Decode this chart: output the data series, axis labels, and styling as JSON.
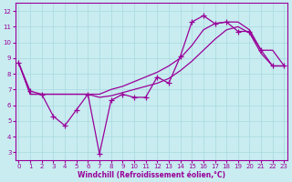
{
  "background_color": "#c8ecf0",
  "grid_color": "#a8d8e0",
  "line_color": "#990099",
  "xlim": [
    -0.3,
    23.3
  ],
  "ylim": [
    2.5,
    12.5
  ],
  "xticks": [
    0,
    1,
    2,
    3,
    4,
    5,
    6,
    7,
    8,
    9,
    10,
    11,
    12,
    13,
    14,
    15,
    16,
    17,
    18,
    19,
    20,
    21,
    22,
    23
  ],
  "yticks": [
    3,
    4,
    5,
    6,
    7,
    8,
    9,
    10,
    11,
    12
  ],
  "xlabel": "Windchill (Refroidissement éolien,°C)",
  "line1_x": [
    0,
    1,
    2,
    3,
    4,
    5,
    6,
    7,
    8,
    9,
    10,
    11,
    12,
    13,
    14,
    15,
    16,
    17,
    18,
    19,
    20,
    21,
    22,
    23
  ],
  "line1_y": [
    8.7,
    6.9,
    6.7,
    5.3,
    4.7,
    5.7,
    6.7,
    2.9,
    6.3,
    6.7,
    6.5,
    6.5,
    7.8,
    7.4,
    9.1,
    11.3,
    11.7,
    11.2,
    11.3,
    10.7,
    10.7,
    9.5,
    8.5,
    8.5
  ],
  "line2_x": [
    0,
    1,
    2,
    3,
    4,
    5,
    6,
    7,
    8,
    9,
    10,
    11,
    12,
    13,
    14,
    15,
    16,
    17,
    18,
    19,
    20,
    21,
    22,
    23
  ],
  "line2_y": [
    8.7,
    6.7,
    6.7,
    6.7,
    6.7,
    6.7,
    6.7,
    6.7,
    7.0,
    7.2,
    7.5,
    7.8,
    8.1,
    8.5,
    9.0,
    9.8,
    10.8,
    11.2,
    11.3,
    11.3,
    10.8,
    9.5,
    9.5,
    8.5
  ],
  "line3_x": [
    0,
    1,
    2,
    3,
    4,
    5,
    6,
    7,
    8,
    9,
    10,
    11,
    12,
    13,
    14,
    15,
    16,
    17,
    18,
    19,
    20,
    21,
    22,
    23
  ],
  "line3_y": [
    8.7,
    6.7,
    6.7,
    6.7,
    6.7,
    6.7,
    6.7,
    6.5,
    6.6,
    6.8,
    7.0,
    7.2,
    7.4,
    7.7,
    8.2,
    8.8,
    9.5,
    10.2,
    10.8,
    11.0,
    10.6,
    9.3,
    8.5,
    8.5
  ]
}
